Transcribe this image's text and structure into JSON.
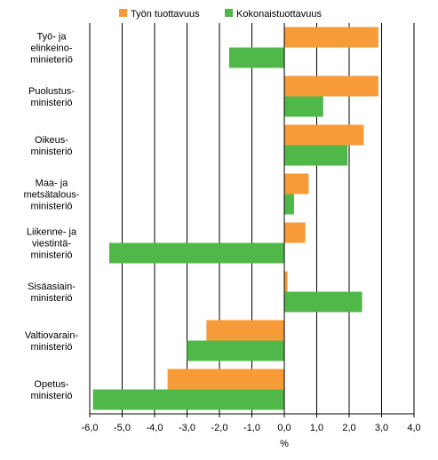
{
  "chart_data": {
    "type": "bar",
    "orientation": "horizontal",
    "categories": [
      [
        "Työ- ja",
        "elinkeino-",
        "minieteriö"
      ],
      [
        "Puolustus-",
        "ministeriö"
      ],
      [
        "Oikeus-",
        "ministeriö"
      ],
      [
        "Maa- ja",
        "metsätalous-",
        "ministeriö"
      ],
      [
        "Liikenne- ja",
        "viestintä-",
        "ministeriö"
      ],
      [
        "Sisäasiain-",
        "ministeriö"
      ],
      [
        "Valtiovarain-",
        "ministeriö"
      ],
      [
        "Opetus-",
        "ministeriö"
      ]
    ],
    "series": [
      {
        "name": "Työn tuottavuus",
        "color": "#f79a38",
        "values": [
          2.9,
          2.9,
          2.45,
          0.75,
          0.65,
          0.1,
          -2.4,
          -3.6
        ]
      },
      {
        "name": "Kokonaistuottavuus",
        "color": "#50b848",
        "values": [
          -1.7,
          1.2,
          1.95,
          0.3,
          -5.4,
          2.4,
          -3.0,
          -5.9
        ]
      }
    ],
    "xlabel": "%",
    "xlim": [
      -6.0,
      4.0
    ],
    "xticks": [
      "-6,0",
      "-5,0",
      "-4,0",
      "-3,0",
      "-2,0",
      "-1,0",
      "0,0",
      "1,0",
      "2,0",
      "3,0",
      "4,0"
    ],
    "grid": "vertical",
    "legend": "top"
  }
}
